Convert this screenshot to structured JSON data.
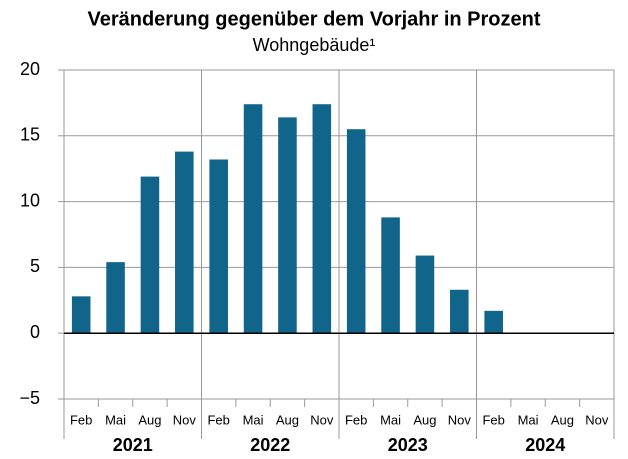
{
  "chart_data": {
    "type": "bar",
    "title": "Veränderung gegenüber dem Vorjahr in Prozent",
    "subtitle": "Wohngebäude¹",
    "categories": [
      "Feb",
      "Mai",
      "Aug",
      "Nov",
      "Feb",
      "Mai",
      "Aug",
      "Nov",
      "Feb",
      "Mai",
      "Aug",
      "Nov",
      "Feb",
      "Mai",
      "Aug",
      "Nov"
    ],
    "years": [
      "2021",
      "2022",
      "2023",
      "2024"
    ],
    "values": [
      2.8,
      5.4,
      11.9,
      13.8,
      13.2,
      17.4,
      16.4,
      17.4,
      15.5,
      8.8,
      5.9,
      3.3,
      1.7,
      null,
      null,
      null
    ],
    "color": "#11648a",
    "ylim": [
      -5,
      20
    ],
    "yticks": [
      {
        "value": -5,
        "label": "−5"
      },
      0,
      5,
      10,
      15,
      20
    ],
    "grid": true
  }
}
